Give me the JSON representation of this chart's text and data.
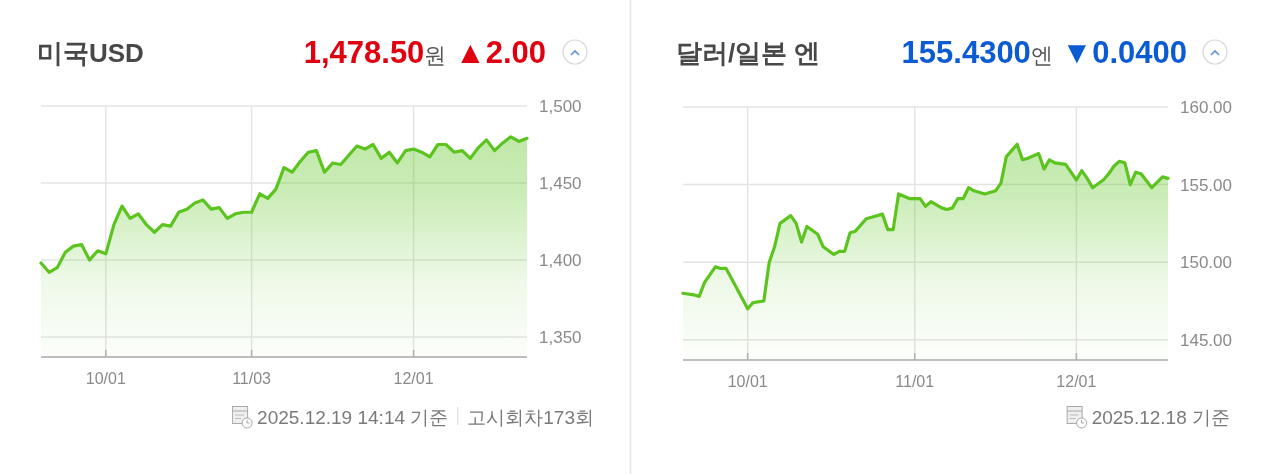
{
  "chart_data": [
    {
      "type": "area",
      "title": "미국USD",
      "subtitle": "1,478.50원 ▲2.00",
      "categories": [
        null,
        null,
        null,
        null,
        null,
        null,
        null,
        null,
        "10/01",
        null,
        null,
        null,
        null,
        null,
        null,
        null,
        null,
        null,
        null,
        null,
        null,
        null,
        null,
        null,
        null,
        null,
        "11/03",
        null,
        null,
        null,
        null,
        null,
        null,
        null,
        null,
        null,
        null,
        null,
        null,
        null,
        null,
        null,
        null,
        null,
        null,
        null,
        "12/01",
        null,
        null,
        null,
        null,
        null,
        null,
        null,
        null,
        null,
        null,
        null,
        null,
        null,
        null
      ],
      "series": [
        {
          "color": "#5cc41f",
          "values": [
            1398,
            1392,
            1395,
            1405,
            1409,
            1410,
            1400,
            1406,
            1404,
            1423,
            1435,
            1427,
            1430,
            1423,
            1418,
            1423,
            1422,
            1431,
            1433,
            1437,
            1439,
            1433,
            1434,
            1427,
            1430,
            1431,
            1431,
            1443,
            1440,
            1446,
            1460,
            1457,
            1464,
            1470,
            1471,
            1457,
            1463,
            1462,
            1468,
            1474,
            1472,
            1475,
            1466,
            1470,
            1463,
            1471,
            1472,
            1470,
            1467,
            1475,
            1475,
            1470,
            1471,
            1466,
            1473,
            1478,
            1471,
            1476,
            1480,
            1477,
            1479
          ]
        }
      ],
      "ylim": [
        1337,
        1500
      ],
      "yticks": [
        {
          "value": 1350,
          "label": "1,350"
        },
        {
          "value": 1400,
          "label": "1,400"
        },
        {
          "value": 1450,
          "label": "1,450"
        },
        {
          "value": 1500,
          "label": "1,500"
        }
      ],
      "grid": true,
      "annotations": [
        "2025.12.19 14:14 기준",
        "고시회차173회"
      ]
    },
    {
      "type": "area",
      "title": "달러/일본 엔",
      "subtitle": "155.4300엔 ▼0.0400",
      "x": [
        "2025-09-19",
        "2025-09-21",
        "2025-09-22",
        "2025-09-23",
        "2025-09-25",
        "2025-09-26",
        "2025-09-27",
        "2025-09-29",
        "2025-10-01",
        "2025-10-02",
        "2025-10-04",
        "2025-10-05",
        "2025-10-06",
        "2025-10-07",
        "2025-10-09",
        "2025-10-10",
        "2025-10-11",
        "2025-10-12",
        "2025-10-14",
        "2025-10-15",
        "2025-10-17",
        "2025-10-18",
        "2025-10-19",
        "2025-10-20",
        "2025-10-21",
        "2025-10-23",
        "2025-10-24",
        "2025-10-26",
        "2025-10-27",
        "2025-10-28",
        "2025-10-29",
        "2025-10-31",
        "2025-11-02",
        "2025-11-03",
        "2025-11-04",
        "2025-11-06",
        "2025-11-07",
        "2025-11-08",
        "2025-11-09",
        "2025-11-10",
        "2025-11-11",
        "2025-11-12",
        "2025-11-14",
        "2025-11-16",
        "2025-11-17",
        "2025-11-18",
        "2025-11-20",
        "2025-11-21",
        "2025-11-22",
        "2025-11-24",
        "2025-11-25",
        "2025-11-26",
        "2025-11-27",
        "2025-11-29",
        "2025-12-01",
        "2025-12-02",
        "2025-12-03",
        "2025-12-04",
        "2025-12-06",
        "2025-12-07",
        "2025-12-08",
        "2025-12-09",
        "2025-12-10",
        "2025-12-11",
        "2025-12-12",
        "2025-12-13",
        "2025-12-15",
        "2025-12-17",
        "2025-12-18"
      ],
      "series": [
        {
          "color": "#5cc41f",
          "values": [
            148.0,
            147.9,
            147.8,
            148.7,
            149.7,
            149.6,
            149.6,
            148.3,
            147.0,
            147.4,
            147.5,
            150.0,
            151.0,
            152.5,
            153.0,
            152.5,
            151.3,
            152.3,
            151.8,
            151.0,
            150.5,
            150.7,
            150.7,
            151.9,
            152.0,
            152.8,
            152.9,
            153.1,
            152.1,
            152.1,
            154.4,
            154.1,
            154.1,
            153.6,
            153.9,
            153.5,
            153.4,
            153.5,
            154.1,
            154.1,
            154.8,
            154.6,
            154.4,
            154.6,
            155.1,
            156.8,
            157.6,
            156.6,
            156.7,
            157.0,
            156.0,
            156.6,
            156.4,
            156.3,
            155.3,
            155.9,
            155.4,
            154.8,
            155.3,
            155.7,
            156.2,
            156.5,
            156.4,
            155.0,
            155.8,
            155.7,
            154.8,
            155.5,
            155.4
          ]
        }
      ],
      "xlim": [
        "2025-09-19",
        "2025-12-18"
      ],
      "xticks": [
        {
          "value": "2025-10-01",
          "label": "10/01"
        },
        {
          "value": "2025-11-01",
          "label": "11/01"
        },
        {
          "value": "2025-12-01",
          "label": "12/01"
        }
      ],
      "ylim": [
        143.7,
        160
      ],
      "yticks": [
        {
          "value": 145,
          "label": "145.00"
        },
        {
          "value": 150,
          "label": "150.00"
        },
        {
          "value": 155,
          "label": "155.00"
        },
        {
          "value": 160,
          "label": "160.00"
        }
      ],
      "grid": true,
      "annotations": [
        "2025.12.18 기준"
      ]
    }
  ]
}
